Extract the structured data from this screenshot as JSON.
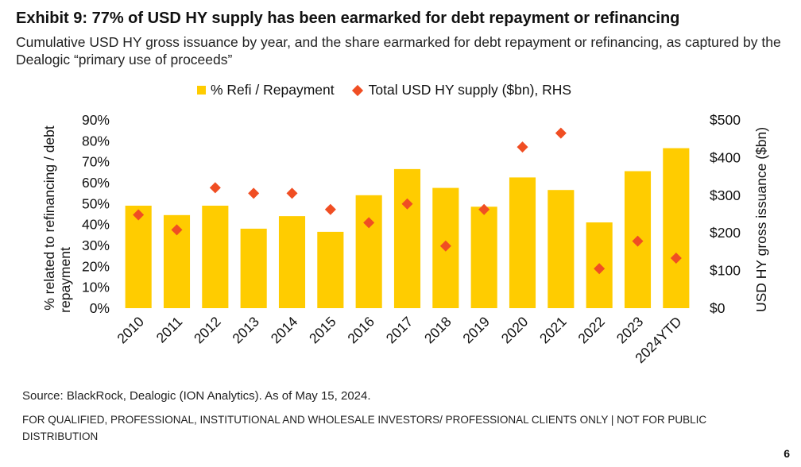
{
  "title": "Exhibit 9: 77% of USD HY supply has been earmarked for debt repayment or refinancing",
  "subtitle": "Cumulative USD HY gross issuance by year, and the share earmarked for debt repayment or refinancing, as captured by the Dealogic “primary use of proceeds”",
  "source": "Source: BlackRock, Dealogic (ION Analytics). As of May 15, 2024.",
  "disclaimer": "FOR QUALIFIED, PROFESSIONAL, INSTITUTIONAL AND WHOLESALE INVESTORS/ PROFESSIONAL CLIENTS ONLY | NOT FOR PUBLIC DISTRIBUTION",
  "page_number": "6",
  "colors": {
    "bar": "#FFCC00",
    "marker": "#F04E23"
  },
  "chart_data": {
    "type": "bar",
    "categories": [
      "2010",
      "2011",
      "2012",
      "2013",
      "2014",
      "2015",
      "2016",
      "2017",
      "2018",
      "2019",
      "2020",
      "2021",
      "2022",
      "2023",
      "2024YTD"
    ],
    "series": [
      {
        "name": "% Refi / Repayment",
        "kind": "bar",
        "axis": "left",
        "values": [
          49,
          44.5,
          49,
          38,
          44,
          36.5,
          54,
          66.5,
          57.5,
          48.5,
          62.5,
          56.5,
          41,
          65.5,
          76.5
        ]
      },
      {
        "name": "Total USD HY supply ($bn), RHS",
        "kind": "diamond",
        "axis": "right",
        "values": [
          248,
          208,
          320,
          305,
          305,
          262,
          227,
          277,
          165,
          262,
          428,
          465,
          105,
          178,
          133
        ]
      }
    ],
    "y_left": {
      "label": "% related to refinancing / debt repayment",
      "min": 0,
      "max": 90,
      "step": 10,
      "ticks": [
        "0%",
        "10%",
        "20%",
        "30%",
        "40%",
        "50%",
        "60%",
        "70%",
        "80%",
        "90%"
      ]
    },
    "y_right": {
      "label": "USD HY gross issuance ($bn)",
      "min": 0,
      "max": 500,
      "step": 100,
      "ticks": [
        "$0",
        "$100",
        "$200",
        "$300",
        "$400",
        "$500"
      ]
    },
    "legend": [
      "% Refi / Repayment",
      "Total USD HY supply ($bn), RHS"
    ],
    "legend_position": "top-center",
    "grid": false
  }
}
